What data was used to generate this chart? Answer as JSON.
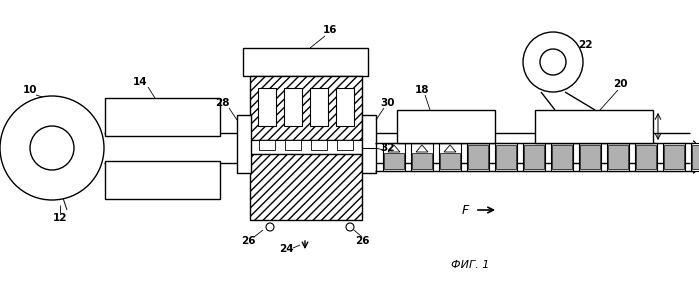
{
  "bg_color": "#ffffff",
  "line_color": "#000000",
  "figsize": [
    6.99,
    2.81
  ],
  "dpi": 100,
  "gray_fill": "#b0b0b0",
  "light_gray": "#d0d0d0",
  "white": "#ffffff"
}
